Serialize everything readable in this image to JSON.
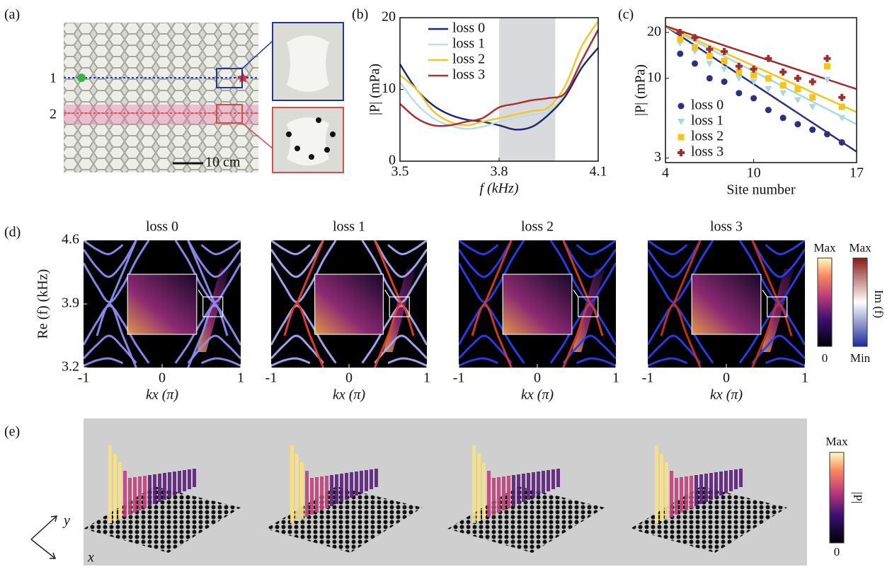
{
  "panel_labels": [
    "(a)",
    "(b)",
    "(c)",
    "(d)",
    "(e)"
  ],
  "photo": {
    "row_labels": [
      "1",
      "2"
    ],
    "scale_bar": "10 cm"
  },
  "chart_data": [
    {
      "type": "line",
      "xlabel": "f (kHz)",
      "ylabel": "|P| (mPa)",
      "x": [
        3.5,
        3.55,
        3.6,
        3.65,
        3.7,
        3.75,
        3.8,
        3.85,
        3.9,
        3.95,
        4.0,
        4.05,
        4.1
      ],
      "xlim": [
        3.5,
        4.1
      ],
      "ylim": [
        0,
        20
      ],
      "xticks": [
        3.5,
        3.8,
        4.1
      ],
      "yticks": [
        0,
        10,
        20
      ],
      "shade": [
        3.8,
        3.97
      ],
      "legend": "upper left",
      "series": [
        {
          "name": "loss 0",
          "color": "#1f2a6e",
          "values": [
            13.5,
            10,
            7.8,
            6.5,
            5.8,
            5.5,
            5.0,
            4.4,
            4.8,
            6.5,
            9,
            13,
            15.8
          ]
        },
        {
          "name": "loss 1",
          "color": "#b9dfe4",
          "values": [
            11,
            8,
            6,
            5,
            4.5,
            4.8,
            5.5,
            6,
            6.5,
            7,
            9.5,
            14,
            18.5
          ]
        },
        {
          "name": "loss 2",
          "color": "#f3c62e",
          "values": [
            12,
            10,
            7,
            5.5,
            5,
            5.5,
            6,
            6.5,
            7,
            7.5,
            10.5,
            16,
            19.5
          ]
        },
        {
          "name": "loss 3",
          "color": "#a83232",
          "values": [
            8,
            6,
            5,
            5,
            5.5,
            6,
            7.5,
            8,
            8.5,
            8.8,
            9.5,
            14,
            18.3
          ]
        }
      ]
    },
    {
      "type": "scatter",
      "xlabel": "Site number",
      "ylabel": "|P| (mPa)",
      "log_y": true,
      "x": [
        5,
        6,
        7,
        8,
        9,
        10,
        11,
        12,
        13,
        14,
        15,
        16
      ],
      "xlim": [
        4,
        17
      ],
      "ylim": [
        2.8,
        25
      ],
      "xticks": [
        4,
        10,
        17
      ],
      "yticks": [
        3,
        10,
        20
      ],
      "legend": "lower left",
      "series": [
        {
          "name": "loss 0",
          "color": "#2b3080",
          "marker": "circle",
          "values": [
            14.5,
            12.5,
            10,
            9.5,
            8,
            7.4,
            6.2,
            5.5,
            5,
            4.6,
            4.3,
            3.8
          ],
          "fit": [
            22,
            3.3
          ]
        },
        {
          "name": "loss 1",
          "color": "#a9d8e3",
          "marker": "triangle",
          "values": [
            17,
            15,
            12.5,
            11.5,
            10,
            9.5,
            8.5,
            8,
            7.2,
            6.5,
            9.8,
            5.5
          ],
          "fit": [
            22,
            5
          ]
        },
        {
          "name": "loss 2",
          "color": "#f5c518",
          "marker": "square",
          "values": [
            18,
            16,
            14,
            13,
            11,
            10.5,
            10,
            9,
            8.5,
            7.5,
            12,
            6.5
          ],
          "fit": [
            22,
            6
          ]
        },
        {
          "name": "loss 3",
          "color": "#9e2f2f",
          "marker": "cross",
          "values": [
            20,
            18.5,
            15.5,
            15,
            12,
            11.5,
            13.5,
            11,
            10,
            9.5,
            13.5,
            7.5
          ],
          "fit": [
            22,
            8.5
          ]
        }
      ]
    },
    {
      "type": "band",
      "title": "loss 0",
      "xlabel": "kx (π)",
      "ylabel": "Re (f) (kHz)",
      "x": [
        -1,
        -0.83,
        -0.67,
        -0.5,
        -0.33,
        -0.17,
        0,
        0.17,
        0.33,
        0.5,
        0.67,
        0.83,
        1
      ],
      "xlim": [
        -1,
        1
      ],
      "ylim": [
        3.2,
        4.6
      ],
      "xticks": [
        -1,
        0,
        1
      ],
      "yticks": [
        3.2,
        3.9,
        4.6
      ],
      "series": [
        {
          "color": "#8d8cf0",
          "values": [
            4.35,
            4.1,
            3.92,
            4.1,
            4.38,
            4.6,
            null,
            4.6,
            4.38,
            4.1,
            3.92,
            4.1,
            4.35
          ]
        },
        {
          "color": "#8d8cf0",
          "values": [
            4.5,
            4.3,
            4.2,
            4.35,
            4.6,
            null,
            null,
            null,
            4.6,
            4.35,
            4.2,
            4.3,
            4.5
          ]
        },
        {
          "color": "#8d8cf0",
          "values": [
            4.6,
            4.5,
            4.45,
            4.55,
            null,
            null,
            null,
            null,
            null,
            4.55,
            4.45,
            4.5,
            4.6
          ]
        },
        {
          "color": "#8d8cf0",
          "values": [
            3.45,
            3.7,
            3.88,
            3.7,
            3.45,
            3.25,
            null,
            3.25,
            3.45,
            3.7,
            3.88,
            3.7,
            3.45
          ]
        },
        {
          "color": "#8d8cf0",
          "values": [
            3.3,
            3.45,
            3.55,
            3.42,
            3.25,
            null,
            null,
            null,
            3.25,
            3.42,
            3.55,
            3.45,
            3.3
          ]
        },
        {
          "color": "#8d8cf0",
          "values": [
            3.22,
            3.28,
            3.3,
            3.25,
            null,
            null,
            null,
            null,
            null,
            3.25,
            3.3,
            3.28,
            3.22
          ]
        },
        {
          "color": "#8d8cf0",
          "values": [
            null,
            null,
            3.9,
            4.25,
            4.6,
            null,
            null,
            null,
            4.6,
            4.25,
            3.9,
            null,
            null
          ]
        },
        {
          "color": "#8d8cf0",
          "values": [
            null,
            3.55,
            3.9,
            3.55,
            3.2,
            null,
            null,
            null,
            3.2,
            3.55,
            3.9,
            3.55,
            null
          ]
        }
      ]
    },
    {
      "type": "band",
      "title": "loss 1",
      "xlabel": "kx (π)",
      "x": [
        -1,
        -0.83,
        -0.67,
        -0.5,
        -0.33,
        -0.17,
        0,
        0.17,
        0.33,
        0.5,
        0.67,
        0.83,
        1
      ],
      "xlim": [
        -1,
        1
      ],
      "ylim": [
        3.2,
        4.6
      ],
      "xticks": [
        -1,
        0,
        1
      ],
      "series": [
        {
          "color": "#a9a8f5",
          "values": [
            4.35,
            4.1,
            3.92,
            4.1,
            4.38,
            4.6,
            null,
            4.6,
            4.38,
            4.1,
            3.92,
            4.1,
            4.35
          ]
        },
        {
          "color": "#a9a8f5",
          "values": [
            4.5,
            4.3,
            4.2,
            4.35,
            4.6,
            null,
            null,
            null,
            4.6,
            4.35,
            4.2,
            4.3,
            4.5
          ]
        },
        {
          "color": "#a9a8f5",
          "values": [
            4.6,
            4.5,
            4.45,
            4.55,
            null,
            null,
            null,
            null,
            null,
            4.55,
            4.45,
            4.5,
            4.6
          ]
        },
        {
          "color": "#a9a8f5",
          "values": [
            3.45,
            3.7,
            3.88,
            3.7,
            3.45,
            3.25,
            null,
            3.25,
            3.45,
            3.7,
            3.88,
            3.7,
            3.45
          ]
        },
        {
          "color": "#a9a8f5",
          "values": [
            3.3,
            3.45,
            3.55,
            3.42,
            3.25,
            null,
            null,
            null,
            3.25,
            3.42,
            3.55,
            3.45,
            3.3
          ]
        },
        {
          "color": "#a9a8f5",
          "values": [
            3.22,
            3.28,
            3.3,
            3.25,
            null,
            null,
            null,
            null,
            null,
            3.25,
            3.3,
            3.28,
            3.22
          ]
        },
        {
          "color": "#e0402a",
          "values": [
            null,
            null,
            3.9,
            4.25,
            4.6,
            null,
            null,
            null,
            4.6,
            4.25,
            3.9,
            null,
            null
          ]
        },
        {
          "color": "#e0402a",
          "values": [
            null,
            3.55,
            3.9,
            3.55,
            3.2,
            null,
            null,
            null,
            3.2,
            3.55,
            3.9,
            3.55,
            null
          ]
        }
      ]
    },
    {
      "type": "band",
      "title": "loss 2",
      "xlabel": "kx (π)",
      "x": [
        -1,
        -0.83,
        -0.67,
        -0.5,
        -0.33,
        -0.17,
        0,
        0.17,
        0.33,
        0.5,
        0.67,
        0.83,
        1
      ],
      "xlim": [
        -1,
        1
      ],
      "ylim": [
        3.2,
        4.6
      ],
      "xticks": [
        -1,
        0,
        1
      ],
      "series": [
        {
          "color": "#2a3df0",
          "values": [
            4.35,
            4.1,
            3.92,
            4.1,
            4.38,
            4.6,
            null,
            4.6,
            4.38,
            4.1,
            3.92,
            4.1,
            4.35
          ]
        },
        {
          "color": "#2a3df0",
          "values": [
            4.5,
            4.3,
            4.2,
            4.35,
            4.6,
            null,
            null,
            null,
            4.6,
            4.35,
            4.2,
            4.3,
            4.5
          ]
        },
        {
          "color": "#2a3df0",
          "values": [
            4.6,
            4.5,
            4.45,
            4.55,
            null,
            null,
            null,
            null,
            null,
            4.55,
            4.45,
            4.5,
            4.6
          ]
        },
        {
          "color": "#2a3df0",
          "values": [
            3.45,
            3.7,
            3.88,
            3.7,
            3.45,
            3.25,
            null,
            3.25,
            3.45,
            3.7,
            3.88,
            3.7,
            3.45
          ]
        },
        {
          "color": "#2a3df0",
          "values": [
            3.3,
            3.45,
            3.55,
            3.42,
            3.25,
            null,
            null,
            null,
            3.25,
            3.42,
            3.55,
            3.45,
            3.3
          ]
        },
        {
          "color": "#2a3df0",
          "values": [
            3.22,
            3.28,
            3.3,
            3.25,
            null,
            null,
            null,
            null,
            null,
            3.25,
            3.3,
            3.28,
            3.22
          ]
        },
        {
          "color": "#d83a26",
          "values": [
            null,
            null,
            3.9,
            4.25,
            4.6,
            null,
            null,
            null,
            4.6,
            4.25,
            3.9,
            null,
            null
          ]
        },
        {
          "color": "#d83a26",
          "values": [
            null,
            3.55,
            3.9,
            3.55,
            3.2,
            null,
            null,
            null,
            3.2,
            3.55,
            3.9,
            3.55,
            null
          ]
        }
      ]
    },
    {
      "type": "band",
      "title": "loss 3",
      "xlabel": "kx (π)",
      "x": [
        -1,
        -0.83,
        -0.67,
        -0.5,
        -0.33,
        -0.17,
        0,
        0.17,
        0.33,
        0.5,
        0.67,
        0.83,
        1
      ],
      "xlim": [
        -1,
        1
      ],
      "ylim": [
        3.2,
        4.6
      ],
      "xticks": [
        -1,
        0,
        1
      ],
      "series": [
        {
          "color": "#2a3df0",
          "values": [
            4.35,
            4.1,
            3.92,
            4.1,
            4.38,
            4.6,
            null,
            4.6,
            4.38,
            4.1,
            3.92,
            4.1,
            4.35
          ]
        },
        {
          "color": "#2a3df0",
          "values": [
            4.5,
            4.3,
            4.2,
            4.35,
            4.6,
            null,
            null,
            null,
            4.6,
            4.35,
            4.2,
            4.3,
            4.5
          ]
        },
        {
          "color": "#2a3df0",
          "values": [
            4.6,
            4.5,
            4.45,
            4.55,
            null,
            null,
            null,
            null,
            null,
            4.55,
            4.45,
            4.5,
            4.6
          ]
        },
        {
          "color": "#2a3df0",
          "values": [
            3.45,
            3.7,
            3.88,
            3.7,
            3.45,
            3.25,
            null,
            3.25,
            3.45,
            3.7,
            3.88,
            3.7,
            3.45
          ]
        },
        {
          "color": "#2a3df0",
          "values": [
            3.3,
            3.45,
            3.55,
            3.42,
            3.25,
            null,
            null,
            null,
            3.25,
            3.42,
            3.55,
            3.45,
            3.3
          ]
        },
        {
          "color": "#2a3df0",
          "values": [
            3.22,
            3.28,
            3.3,
            3.25,
            null,
            null,
            null,
            null,
            null,
            3.25,
            3.3,
            3.28,
            3.22
          ]
        },
        {
          "color": "#c8321f",
          "values": [
            null,
            null,
            3.9,
            4.25,
            4.6,
            null,
            null,
            null,
            4.6,
            4.25,
            3.9,
            null,
            null
          ]
        },
        {
          "color": "#c8321f",
          "values": [
            null,
            3.55,
            3.9,
            3.55,
            3.2,
            null,
            null,
            null,
            3.2,
            3.55,
            3.9,
            3.55,
            null
          ]
        }
      ]
    }
  ],
  "colorbars": {
    "d_abs": {
      "max": "Max",
      "min": "0"
    },
    "d_im": {
      "max": "Max",
      "label": "Im (f)",
      "min": "Min"
    },
    "e": {
      "max": "Max",
      "label": "|P|",
      "min": "0"
    }
  },
  "axes_3d": {
    "y": "y",
    "x": "x"
  }
}
